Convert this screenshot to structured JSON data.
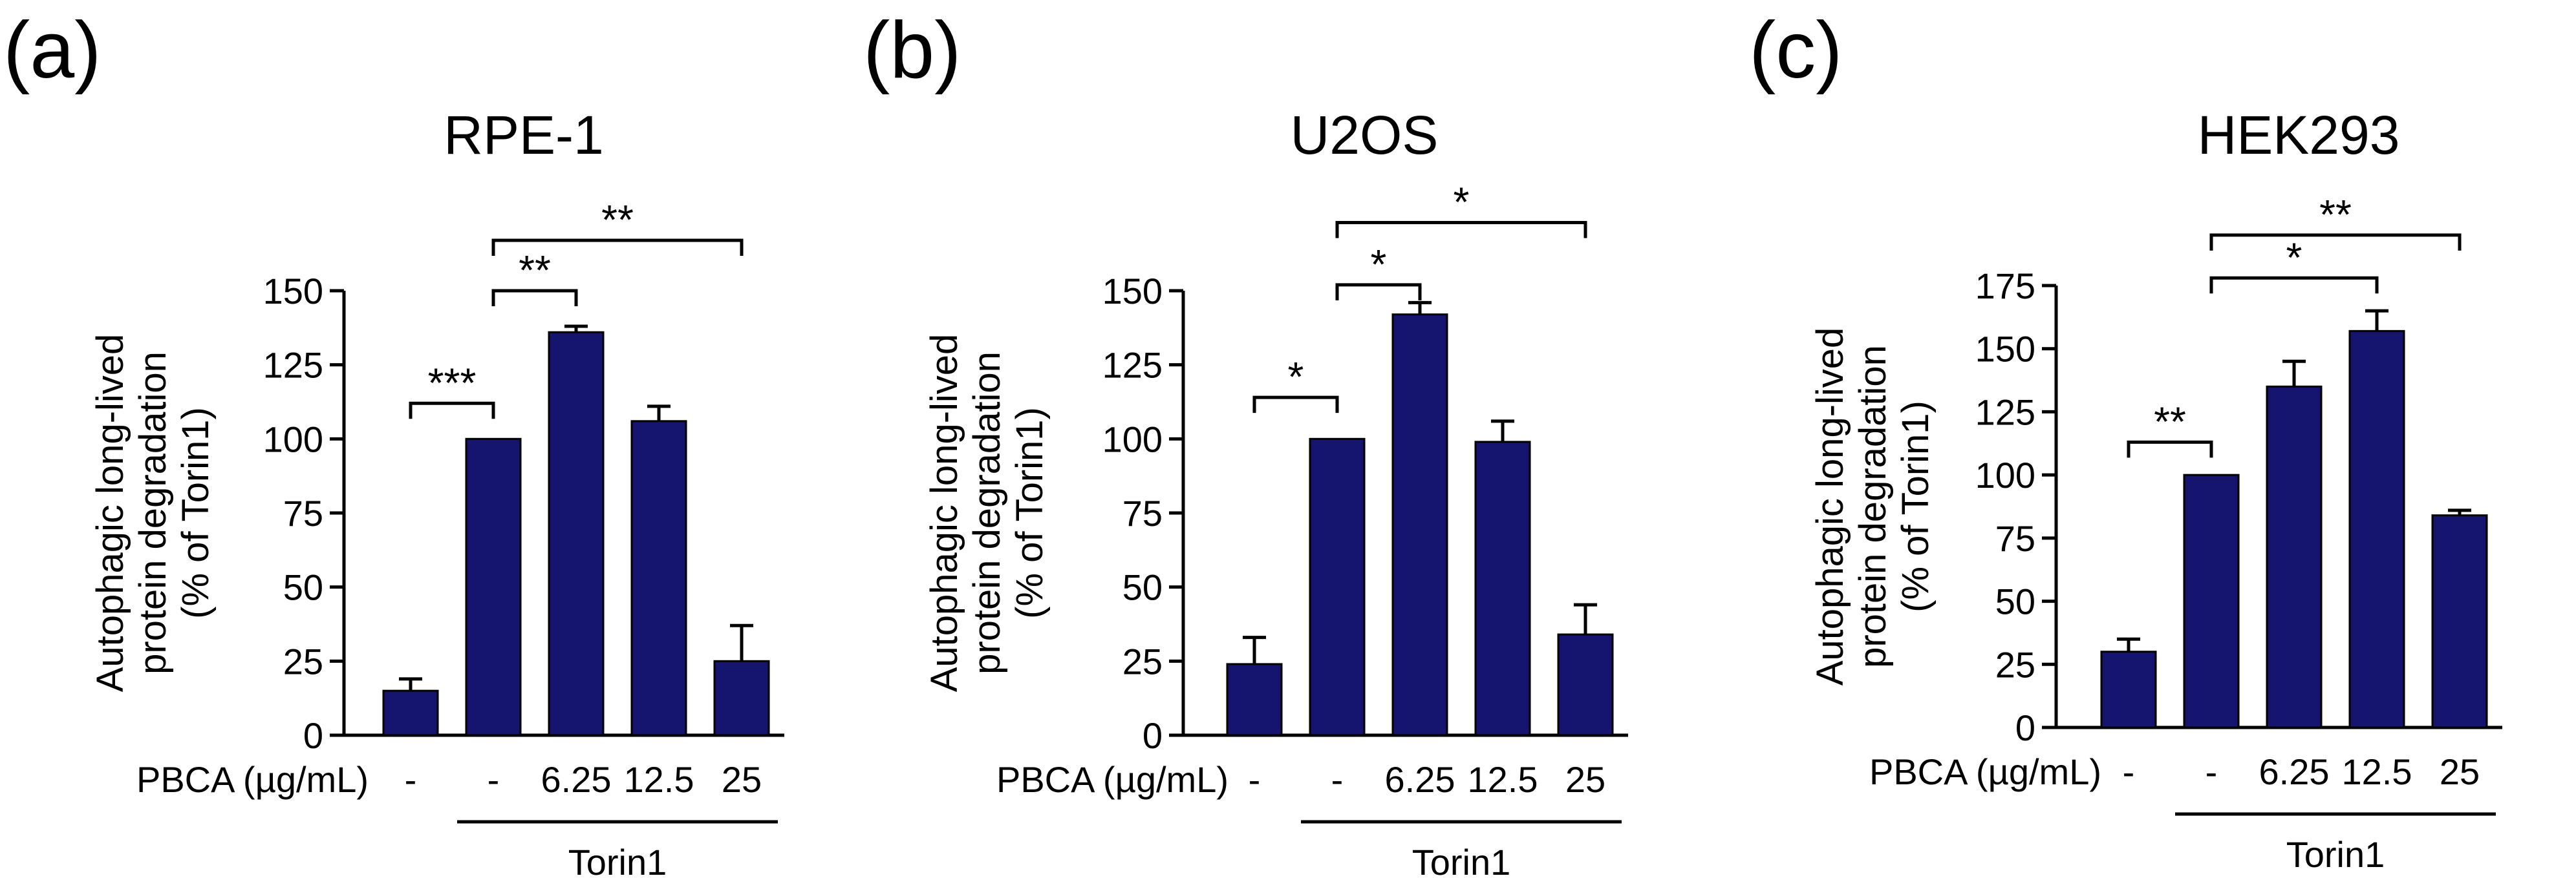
{
  "chart_data": [
    {
      "panel": "(a)",
      "type": "bar",
      "title": "RPE-1",
      "ylabel": [
        "Autophagic long-lived",
        "protein degradation",
        "(% of Torin1)"
      ],
      "ylim": [
        0,
        150
      ],
      "yticks": [
        0,
        25,
        50,
        75,
        100,
        125,
        150
      ],
      "row_label": "PBCA (µg/mL)",
      "categories": [
        "-",
        "-",
        "6.25",
        "12.5",
        "25"
      ],
      "values": [
        15,
        100,
        136,
        106,
        25
      ],
      "errors": [
        4,
        0,
        2,
        5,
        12
      ],
      "group": {
        "label": "Torin1",
        "from": 1,
        "to": 4
      },
      "bar_color": "#151570",
      "significance": [
        {
          "from": 0,
          "to": 1,
          "label": "***",
          "y": 112
        },
        {
          "from": 1,
          "to": 2,
          "label": "**",
          "y": 150
        },
        {
          "from": 1,
          "to": 4,
          "label": "**",
          "y": 167
        }
      ]
    },
    {
      "panel": "(b)",
      "type": "bar",
      "title": "U2OS",
      "ylabel": [
        "Autophagic long-lived",
        "protein degradation",
        "(% of Torin1)"
      ],
      "ylim": [
        0,
        150
      ],
      "yticks": [
        0,
        25,
        50,
        75,
        100,
        125,
        150
      ],
      "row_label": "PBCA (µg/mL)",
      "categories": [
        "-",
        "-",
        "6.25",
        "12.5",
        "25"
      ],
      "values": [
        24,
        100,
        142,
        99,
        34
      ],
      "errors": [
        9,
        0,
        4,
        7,
        10
      ],
      "group": {
        "label": "Torin1",
        "from": 1,
        "to": 4
      },
      "bar_color": "#151570",
      "significance": [
        {
          "from": 0,
          "to": 1,
          "label": "*",
          "y": 114
        },
        {
          "from": 1,
          "to": 2,
          "label": "*",
          "y": 152
        },
        {
          "from": 1,
          "to": 4,
          "label": "*",
          "y": 173
        }
      ]
    },
    {
      "panel": "(c)",
      "type": "bar",
      "title": "HEK293",
      "ylabel": [
        "Autophagic long-lived",
        "protein degradation",
        "(% of Torin1)"
      ],
      "ylim": [
        0,
        175
      ],
      "yticks": [
        0,
        25,
        50,
        75,
        100,
        125,
        150,
        175
      ],
      "row_label": "PBCA (µg/mL)",
      "categories": [
        "-",
        "-",
        "6.25",
        "12.5",
        "25"
      ],
      "values": [
        30,
        100,
        135,
        157,
        84
      ],
      "errors": [
        5,
        0,
        10,
        8,
        2
      ],
      "group": {
        "label": "Torin1",
        "from": 1,
        "to": 4
      },
      "bar_color": "#151570",
      "significance": [
        {
          "from": 0,
          "to": 1,
          "label": "**",
          "y": 113
        },
        {
          "from": 1,
          "to": 3,
          "label": "*",
          "y": 178
        },
        {
          "from": 1,
          "to": 4,
          "label": "**",
          "y": 195
        }
      ]
    }
  ]
}
